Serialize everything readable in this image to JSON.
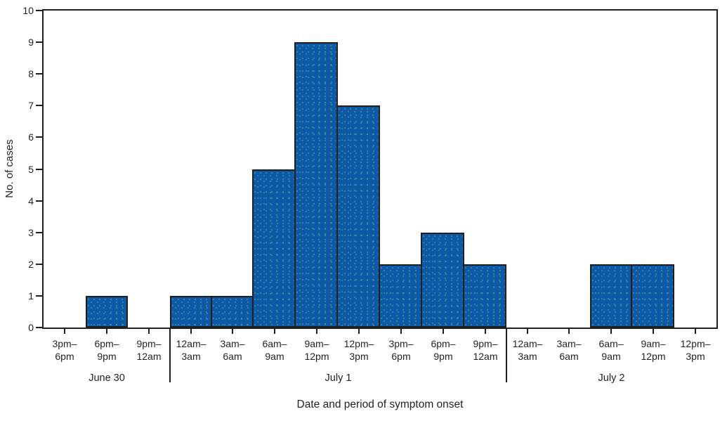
{
  "chart_data": {
    "type": "bar",
    "xlabel": "Date and period of symptom onset",
    "ylabel": "No. of cases",
    "ylim": [
      0,
      10
    ],
    "yticks": [
      0,
      1,
      2,
      3,
      4,
      5,
      6,
      7,
      8,
      9,
      10
    ],
    "grid": false,
    "legend": false,
    "colors": {
      "bar_fill": "#0E59A6",
      "bar_dot": "rgba(110,190,160,0.45)",
      "line": "#231F20",
      "text": "#231F20"
    },
    "groups": [
      {
        "date": "June 30",
        "categories": [
          [
            "3pm–",
            "6pm"
          ],
          [
            "6pm–",
            "9pm"
          ],
          [
            "9pm–",
            "12am"
          ]
        ],
        "values": [
          0,
          1,
          0
        ]
      },
      {
        "date": "July 1",
        "categories": [
          [
            "12am–",
            "3am"
          ],
          [
            "3am–",
            "6am"
          ],
          [
            "6am–",
            "9am"
          ],
          [
            "9am–",
            "12pm"
          ],
          [
            "12pm–",
            "3pm"
          ],
          [
            "3pm–",
            "6pm"
          ],
          [
            "6pm–",
            "9pm"
          ],
          [
            "9pm–",
            "12am"
          ]
        ],
        "values": [
          1,
          1,
          5,
          9,
          7,
          2,
          3,
          2
        ]
      },
      {
        "date": "July 2",
        "categories": [
          [
            "12am–",
            "3am"
          ],
          [
            "3am–",
            "6am"
          ],
          [
            "6am–",
            "9am"
          ],
          [
            "9am–",
            "12pm"
          ],
          [
            "12pm–",
            "3pm"
          ]
        ],
        "values": [
          0,
          0,
          2,
          2,
          0
        ]
      }
    ]
  }
}
